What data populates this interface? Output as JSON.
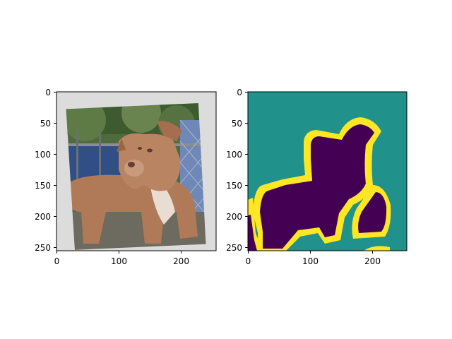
{
  "figure": {
    "panels": [
      {
        "name": "photo",
        "x_ticks": [
          "0",
          "100",
          "200"
        ],
        "y_ticks": [
          "0",
          "50",
          "100",
          "150",
          "200",
          "250"
        ]
      },
      {
        "name": "segmentation-mask",
        "x_ticks": [
          "0",
          "100",
          "200"
        ],
        "y_ticks": [
          "0",
          "50",
          "100",
          "150",
          "200",
          "250"
        ],
        "colors": {
          "background": "#21918c",
          "foreground": "#440154",
          "boundary": "#fde725"
        }
      }
    ]
  }
}
